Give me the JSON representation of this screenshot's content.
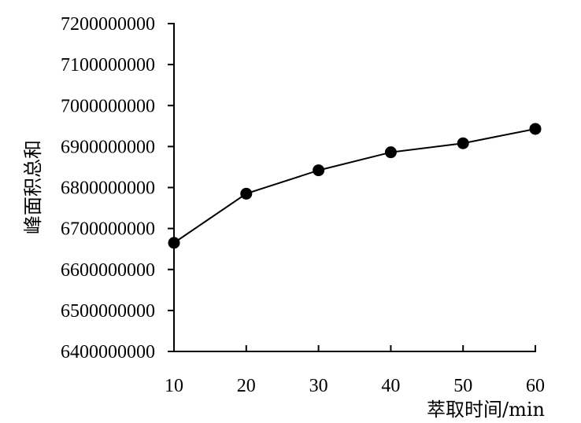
{
  "chart_data": {
    "type": "line",
    "title": "",
    "xlabel": "萃取时间/min",
    "ylabel": "峰面积总和",
    "x": [
      10,
      20,
      30,
      40,
      50,
      60
    ],
    "xlim": [
      10,
      60
    ],
    "ylim": [
      6400000000,
      7200000000
    ],
    "x_ticks": [
      "10",
      "20",
      "30",
      "40",
      "50",
      "60"
    ],
    "y_ticks": [
      "7200000000",
      "7100000000",
      "7000000000",
      "6900000000",
      "6800000000",
      "6700000000",
      "6600000000",
      "6500000000",
      "6400000000"
    ],
    "grid": false,
    "legend": "none",
    "series": [
      {
        "values": [
          6665000000,
          6785000000,
          6842000000,
          6886000000,
          6908000000,
          6943000000
        ],
        "color": "#000000",
        "marker": "filled-circle"
      }
    ]
  }
}
